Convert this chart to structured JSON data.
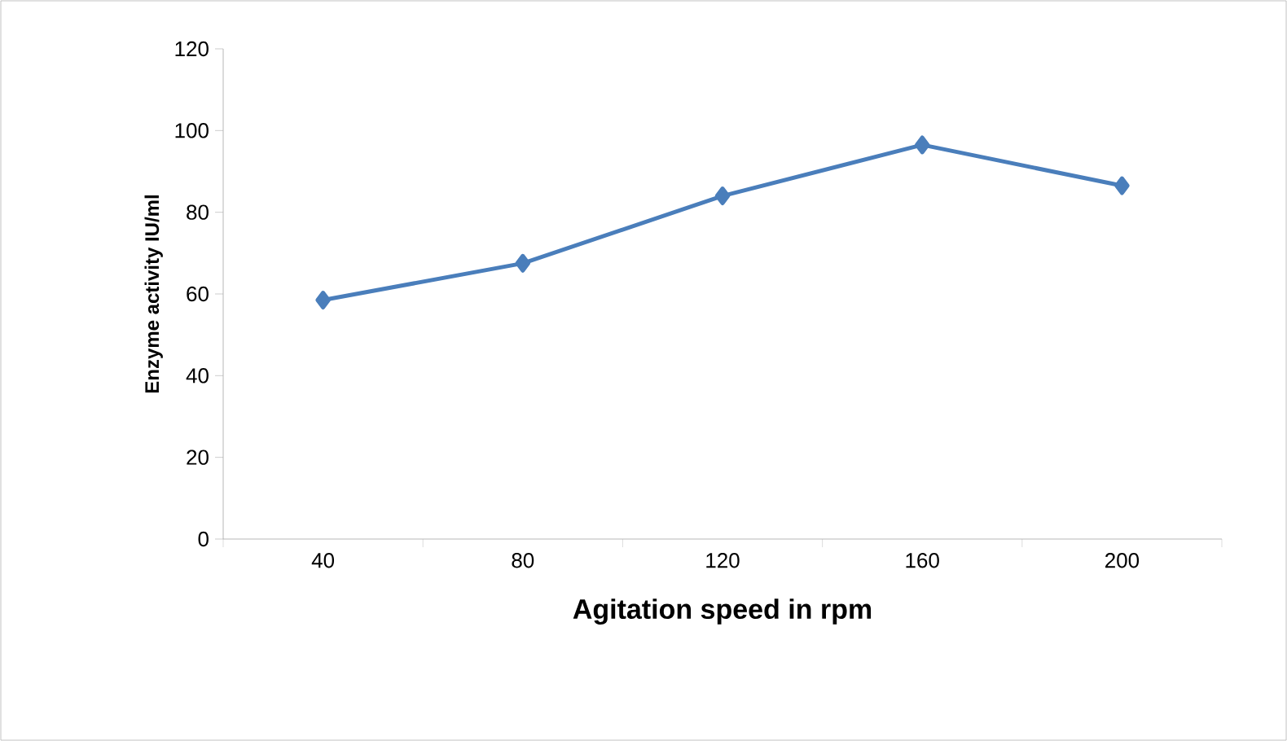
{
  "chart_data": {
    "type": "line",
    "xlabel": "Agitation speed in rpm",
    "ylabel": "Enzyme activity IU/ml",
    "categories": [
      "40",
      "80",
      "120",
      "160",
      "200"
    ],
    "series": [
      {
        "color": "#4a7ebb",
        "values": [
          58.5,
          67.5,
          84,
          96.5,
          86.5
        ]
      }
    ],
    "ylim": [
      0,
      120
    ],
    "yticks": [
      0,
      20,
      40,
      60,
      80,
      100,
      120
    ],
    "marker": "diamond",
    "line_style": "solid"
  }
}
